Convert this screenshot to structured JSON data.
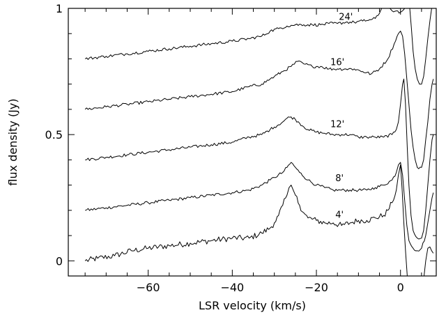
{
  "chart_data": {
    "type": "line",
    "title": "",
    "xlabel": "LSR velocity (km/s)",
    "ylabel": "flux density (Jy)",
    "xlim": [
      -79,
      8.5
    ],
    "ylim": [
      -0.06,
      1.0
    ],
    "x_ticks": [
      -60,
      -40,
      -20,
      0
    ],
    "x_tick_labels": [
      "−60",
      "−40",
      "−20",
      "0"
    ],
    "y_ticks": [
      0,
      0.5,
      1
    ],
    "y_tick_labels": [
      "0",
      "0.5",
      "1"
    ],
    "grid": false,
    "series": [
      {
        "name": "4'",
        "label_at": [
          -14.5,
          0.17
        ],
        "points": [
          [
            -75,
            0.0
          ],
          [
            -72,
            0.01
          ],
          [
            -68,
            0.02
          ],
          [
            -64,
            0.04
          ],
          [
            -60,
            0.05
          ],
          [
            -55,
            0.06
          ],
          [
            -50,
            0.07
          ],
          [
            -45,
            0.08
          ],
          [
            -40,
            0.09
          ],
          [
            -36,
            0.09
          ],
          [
            -33,
            0.11
          ],
          [
            -31,
            0.13
          ],
          [
            -30,
            0.15
          ],
          [
            -29,
            0.18
          ],
          [
            -28,
            0.22
          ],
          [
            -27,
            0.26
          ],
          [
            -26.5,
            0.29
          ],
          [
            -26,
            0.3
          ],
          [
            -25.5,
            0.28
          ],
          [
            -25,
            0.26
          ],
          [
            -24,
            0.22
          ],
          [
            -23,
            0.19
          ],
          [
            -22,
            0.17
          ],
          [
            -20,
            0.16
          ],
          [
            -18,
            0.15
          ],
          [
            -16,
            0.15
          ],
          [
            -14,
            0.14
          ],
          [
            -12,
            0.15
          ],
          [
            -10,
            0.16
          ],
          [
            -8,
            0.16
          ],
          [
            -6,
            0.17
          ],
          [
            -4,
            0.18
          ],
          [
            -3,
            0.2
          ],
          [
            -2,
            0.23
          ],
          [
            -1,
            0.28
          ],
          [
            -0.5,
            0.34
          ],
          [
            0,
            0.38
          ],
          [
            0.4,
            0.28
          ],
          [
            0.8,
            0.15
          ],
          [
            1.2,
            0.04
          ],
          [
            1.6,
            -0.06
          ]
        ]
      },
      {
        "name": "4'",
        "points": [
          [
            5.6,
            -0.06
          ],
          [
            6.0,
            0.0
          ],
          [
            6.5,
            0.05
          ],
          [
            7.0,
            0.055
          ],
          [
            7.4,
            0.04
          ],
          [
            7.8,
            0.03
          ]
        ]
      },
      {
        "name": "8'",
        "label_at": [
          -14.5,
          0.315
        ],
        "points": [
          [
            -75,
            0.2
          ],
          [
            -70,
            0.21
          ],
          [
            -65,
            0.22
          ],
          [
            -60,
            0.23
          ],
          [
            -55,
            0.24
          ],
          [
            -50,
            0.25
          ],
          [
            -45,
            0.26
          ],
          [
            -40,
            0.27
          ],
          [
            -36,
            0.28
          ],
          [
            -33,
            0.3
          ],
          [
            -31,
            0.32
          ],
          [
            -30,
            0.33
          ],
          [
            -28,
            0.35
          ],
          [
            -27,
            0.37
          ],
          [
            -26,
            0.39
          ],
          [
            -25,
            0.37
          ],
          [
            -24,
            0.35
          ],
          [
            -22,
            0.32
          ],
          [
            -20,
            0.3
          ],
          [
            -18,
            0.29
          ],
          [
            -16,
            0.28
          ],
          [
            -14,
            0.28
          ],
          [
            -12,
            0.28
          ],
          [
            -10,
            0.28
          ],
          [
            -8,
            0.28
          ],
          [
            -6,
            0.29
          ],
          [
            -4,
            0.3
          ],
          [
            -2,
            0.32
          ],
          [
            -1,
            0.35
          ],
          [
            -0.5,
            0.38
          ],
          [
            0,
            0.39
          ],
          [
            0.5,
            0.34
          ],
          [
            1,
            0.24
          ],
          [
            1.5,
            0.14
          ],
          [
            2,
            0.08
          ],
          [
            3,
            0.05
          ],
          [
            4,
            0.04
          ],
          [
            5,
            0.05
          ],
          [
            6,
            0.1
          ],
          [
            6.5,
            0.15
          ],
          [
            7,
            0.2
          ],
          [
            7.5,
            0.25
          ],
          [
            7.8,
            0.27
          ]
        ]
      },
      {
        "name": "12'",
        "label_at": [
          -15,
          0.53
        ],
        "points": [
          [
            -75,
            0.4
          ],
          [
            -70,
            0.41
          ],
          [
            -65,
            0.42
          ],
          [
            -60,
            0.43
          ],
          [
            -55,
            0.44
          ],
          [
            -50,
            0.45
          ],
          [
            -45,
            0.46
          ],
          [
            -40,
            0.47
          ],
          [
            -36,
            0.49
          ],
          [
            -33,
            0.5
          ],
          [
            -31,
            0.52
          ],
          [
            -30,
            0.53
          ],
          [
            -28,
            0.55
          ],
          [
            -27,
            0.565
          ],
          [
            -26,
            0.57
          ],
          [
            -25,
            0.56
          ],
          [
            -24,
            0.545
          ],
          [
            -22,
            0.52
          ],
          [
            -20,
            0.51
          ],
          [
            -18,
            0.505
          ],
          [
            -16,
            0.5
          ],
          [
            -14,
            0.5
          ],
          [
            -12,
            0.5
          ],
          [
            -10,
            0.49
          ],
          [
            -8,
            0.49
          ],
          [
            -6,
            0.49
          ],
          [
            -4,
            0.49
          ],
          [
            -2,
            0.5
          ],
          [
            -1,
            0.52
          ],
          [
            -0.5,
            0.55
          ],
          [
            0,
            0.62
          ],
          [
            0.5,
            0.7
          ],
          [
            0.8,
            0.72
          ],
          [
            1.2,
            0.62
          ],
          [
            1.6,
            0.45
          ],
          [
            2,
            0.3
          ],
          [
            2.5,
            0.18
          ],
          [
            3,
            0.12
          ],
          [
            4,
            0.09
          ],
          [
            5,
            0.09
          ],
          [
            5.5,
            0.12
          ],
          [
            6,
            0.2
          ],
          [
            6.5,
            0.3
          ],
          [
            7,
            0.4
          ],
          [
            7.5,
            0.48
          ],
          [
            7.8,
            0.5
          ]
        ]
      },
      {
        "name": "16'",
        "label_at": [
          -15,
          0.775
        ],
        "points": [
          [
            -75,
            0.6
          ],
          [
            -70,
            0.61
          ],
          [
            -65,
            0.62
          ],
          [
            -60,
            0.63
          ],
          [
            -55,
            0.64
          ],
          [
            -50,
            0.65
          ],
          [
            -45,
            0.66
          ],
          [
            -40,
            0.67
          ],
          [
            -36,
            0.69
          ],
          [
            -33,
            0.7
          ],
          [
            -31,
            0.72
          ],
          [
            -30,
            0.73
          ],
          [
            -28,
            0.75
          ],
          [
            -26,
            0.77
          ],
          [
            -24.5,
            0.79
          ],
          [
            -23,
            0.78
          ],
          [
            -21,
            0.77
          ],
          [
            -19,
            0.77
          ],
          [
            -17,
            0.76
          ],
          [
            -15,
            0.76
          ],
          [
            -13,
            0.76
          ],
          [
            -11,
            0.76
          ],
          [
            -9,
            0.75
          ],
          [
            -7,
            0.74
          ],
          [
            -5,
            0.76
          ],
          [
            -3,
            0.8
          ],
          [
            -1.5,
            0.86
          ],
          [
            -0.5,
            0.9
          ],
          [
            0,
            0.91
          ],
          [
            0.5,
            0.89
          ],
          [
            1,
            0.82
          ],
          [
            1.5,
            0.72
          ],
          [
            2,
            0.62
          ],
          [
            2.5,
            0.52
          ],
          [
            3,
            0.45
          ],
          [
            3.5,
            0.4
          ],
          [
            4,
            0.37
          ],
          [
            5,
            0.37
          ],
          [
            5.5,
            0.4
          ],
          [
            6,
            0.48
          ],
          [
            6.5,
            0.55
          ],
          [
            7,
            0.64
          ],
          [
            7.5,
            0.7
          ],
          [
            7.8,
            0.72
          ]
        ]
      },
      {
        "name": "24'",
        "label_at": [
          -13,
          0.955
        ],
        "points": [
          [
            -75,
            0.8
          ],
          [
            -70,
            0.81
          ],
          [
            -65,
            0.82
          ],
          [
            -60,
            0.83
          ],
          [
            -55,
            0.84
          ],
          [
            -50,
            0.85
          ],
          [
            -45,
            0.86
          ],
          [
            -40,
            0.87
          ],
          [
            -36,
            0.88
          ],
          [
            -33,
            0.89
          ],
          [
            -31,
            0.91
          ],
          [
            -29,
            0.92
          ],
          [
            -27,
            0.93
          ],
          [
            -25,
            0.935
          ],
          [
            -23,
            0.935
          ],
          [
            -21,
            0.935
          ],
          [
            -19,
            0.935
          ],
          [
            -17,
            0.94
          ],
          [
            -15,
            0.94
          ],
          [
            -13,
            0.945
          ],
          [
            -11,
            0.945
          ],
          [
            -9,
            0.95
          ],
          [
            -7,
            0.955
          ],
          [
            -6,
            0.96
          ],
          [
            -5,
            0.98
          ],
          [
            -4.5,
            1.0
          ]
        ]
      },
      {
        "name": "24'",
        "points": [
          [
            -2.5,
            1.0
          ],
          [
            -2,
            0.99
          ],
          [
            -1,
            0.99
          ],
          [
            0,
            0.985
          ],
          [
            0.5,
            0.99
          ],
          [
            1,
            1.0
          ]
        ]
      },
      {
        "name": "24'",
        "points": [
          [
            2.2,
            1.0
          ],
          [
            2.6,
            0.92
          ],
          [
            3,
            0.83
          ],
          [
            3.5,
            0.76
          ],
          [
            4,
            0.72
          ],
          [
            4.5,
            0.7
          ],
          [
            5,
            0.7
          ],
          [
            5.5,
            0.73
          ],
          [
            6,
            0.8
          ],
          [
            6.5,
            0.88
          ],
          [
            7,
            0.95
          ],
          [
            7.4,
            1.0
          ]
        ]
      }
    ]
  }
}
